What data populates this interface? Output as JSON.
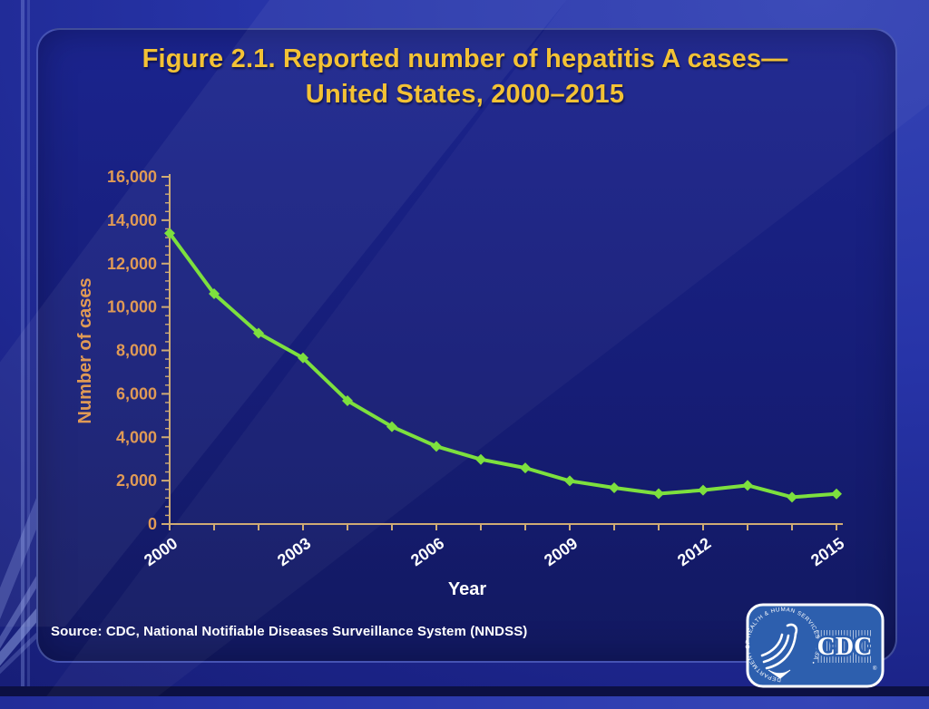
{
  "slide": {
    "title_line1": "Figure 2.1. Reported number of hepatitis A cases—",
    "title_line2": "United States, 2000–2015",
    "source": "Source: CDC, National Notifiable Diseases Surveillance System (NNDSS)"
  },
  "logo": {
    "acronym": "CDC",
    "seal_text": "DEPARTMENT OF HEALTH & HUMAN SERVICES • USA •",
    "registered_mark": "®"
  },
  "colors": {
    "title_gold": "#f3c235",
    "axis_line": "#cfab74",
    "axis_tick_labels": "#e09a55",
    "x_tick_labels": "#ffffff",
    "series_line": "#7de03e",
    "source_text": "#ffffff",
    "panel_navy": "#161d77",
    "logo_blue": "#2d5fae"
  },
  "chart_data": {
    "type": "line",
    "title": "Figure 2.1. Reported number of hepatitis A cases—United States, 2000–2015",
    "x": [
      2000,
      2001,
      2002,
      2003,
      2004,
      2005,
      2006,
      2007,
      2008,
      2009,
      2010,
      2011,
      2012,
      2013,
      2014,
      2015
    ],
    "series": [
      {
        "name": "Reported hepatitis A cases",
        "values": [
          13397,
          10609,
          8795,
          7653,
          5683,
          4488,
          3579,
          2979,
          2585,
          1987,
          1670,
          1398,
          1562,
          1781,
          1239,
          1390
        ]
      }
    ],
    "xlabel": "Year",
    "ylabel": "Number of cases",
    "ylim": [
      0,
      16000
    ],
    "ytick_step": 2000,
    "yminor_step": 400,
    "xtick_label_years": [
      2000,
      2003,
      2006,
      2009,
      2012,
      2015
    ],
    "grid": false,
    "legend": "none",
    "marker": "diamond",
    "line_color": "#7de03e"
  }
}
